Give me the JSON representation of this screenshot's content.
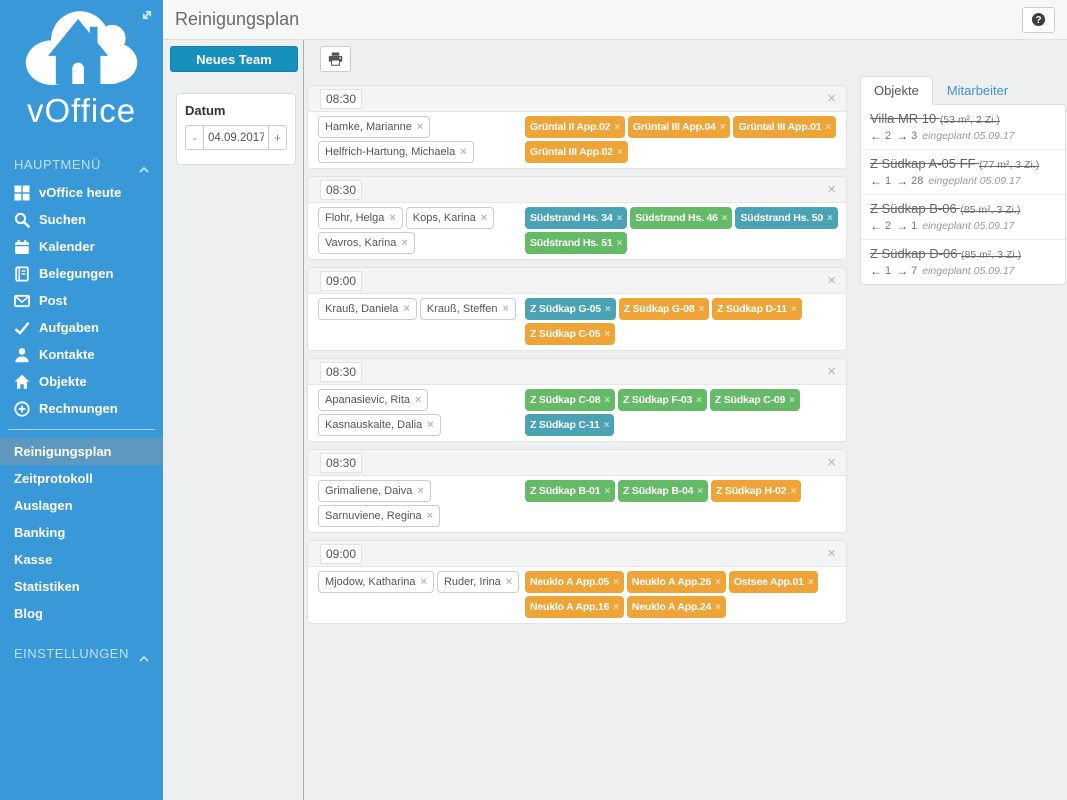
{
  "colors": {
    "orange": "#efa437",
    "teal": "#4aa2b5",
    "green": "#64ba66",
    "sidebar": "#3999d8",
    "accent": "#1790bd"
  },
  "sidebar": {
    "logo_text": "vOffice",
    "sections": [
      {
        "label": "HAUPTMENÜ",
        "collapse_icon": "chevron-up-icon",
        "items": [
          {
            "label": "vOffice heute",
            "icon": "grid-icon"
          },
          {
            "label": "Suchen",
            "icon": "search-icon"
          },
          {
            "label": "Kalender",
            "icon": "calendar-icon"
          },
          {
            "label": "Belegungen",
            "icon": "journal-icon"
          },
          {
            "label": "Post",
            "icon": "envelope-icon"
          },
          {
            "label": "Aufgaben",
            "icon": "check-icon"
          },
          {
            "label": "Kontakte",
            "icon": "person-icon"
          },
          {
            "label": "Objekte",
            "icon": "home-icon"
          },
          {
            "label": "Rechnungen",
            "icon": "plus-circle-icon"
          }
        ]
      },
      {
        "divider": true,
        "items": [
          {
            "label": "Reinigungsplan",
            "active": true
          },
          {
            "label": "Zeitprotokoll"
          },
          {
            "label": "Auslagen"
          },
          {
            "label": "Banking"
          },
          {
            "label": "Kasse"
          },
          {
            "label": "Statistiken"
          },
          {
            "label": "Blog"
          }
        ]
      },
      {
        "label": "EINSTELLUNGEN",
        "collapse_icon": "chevron-up-icon",
        "items": []
      }
    ]
  },
  "header": {
    "title": "Reinigungsplan",
    "help_icon": "question-circle-icon"
  },
  "toolbar": {
    "new_team_label": "Neues Team",
    "print_icon": "printer-icon"
  },
  "date_panel": {
    "label": "Datum",
    "decrement_label": "-",
    "value": "04.09.2017",
    "increment_label": "+"
  },
  "teams": [
    {
      "time": "08:30",
      "members": [
        "Hamke, Marianne",
        "Helfrich-Hartung, Michaela"
      ],
      "objects": [
        {
          "label": "Grüntal II App.02",
          "color": "orange"
        },
        {
          "label": "Grüntal III App.04",
          "color": "orange"
        },
        {
          "label": "Grüntal III App.01",
          "color": "orange"
        },
        {
          "label": "Grüntal III App.02",
          "color": "orange"
        }
      ]
    },
    {
      "time": "08:30",
      "members": [
        "Flohr, Helga",
        "Kops, Karina",
        "Vavros, Karina"
      ],
      "objects": [
        {
          "label": "Südstrand Hs. 34",
          "color": "teal"
        },
        {
          "label": "Südstrand Hs. 46",
          "color": "green"
        },
        {
          "label": "Südstrand Hs. 50",
          "color": "teal"
        },
        {
          "label": "Südstrand Hs. 51",
          "color": "green"
        }
      ]
    },
    {
      "time": "09:00",
      "members": [
        "Krauß, Daniela",
        "Krauß, Steffen"
      ],
      "objects": [
        {
          "label": "Z Südkap G-05",
          "color": "teal"
        },
        {
          "label": "Z Südkap G-08",
          "color": "orange"
        },
        {
          "label": "Z Südkap D-11",
          "color": "orange"
        },
        {
          "label": "Z Südkap C-05",
          "color": "orange"
        }
      ]
    },
    {
      "time": "08:30",
      "members": [
        "Apanasievic, Rita",
        "Kasnauskaite, Dalia"
      ],
      "objects": [
        {
          "label": "Z Südkap C-08",
          "color": "green"
        },
        {
          "label": "Z Südkap F-03",
          "color": "green"
        },
        {
          "label": "Z Südkap C-09",
          "color": "green"
        },
        {
          "label": "Z Südkap C-11",
          "color": "teal"
        }
      ]
    },
    {
      "time": "08:30",
      "members": [
        "Grimaliene, Daiva",
        "Sarnuviene, Regina"
      ],
      "objects": [
        {
          "label": "Z Südkap B-01",
          "color": "green"
        },
        {
          "label": "Z Südkap B-04",
          "color": "green"
        },
        {
          "label": "Z Südkap H-02",
          "color": "orange"
        }
      ]
    },
    {
      "time": "09:00",
      "members": [
        "Mjodow, Katharina",
        "Ruder, Irina"
      ],
      "objects": [
        {
          "label": "Neuklo A App.05",
          "color": "orange"
        },
        {
          "label": "Neuklo A App.26",
          "color": "orange"
        },
        {
          "label": "Ostsee App.01",
          "color": "orange"
        },
        {
          "label": "Neuklo A App.16",
          "color": "orange"
        },
        {
          "label": "Neuklo A App.24",
          "color": "orange"
        }
      ]
    }
  ],
  "right_panel": {
    "tabs": [
      {
        "label": "Objekte",
        "active": true
      },
      {
        "label": "Mitarbeiter",
        "active": false
      }
    ],
    "objects": [
      {
        "name": "Villa MR 10",
        "details": "(53 m², 2 Zi.)",
        "back": "2",
        "forward": "3",
        "note": "eingeplant 05.09.17"
      },
      {
        "name": "Z Südkap A-05 FF",
        "details": "(77 m², 3 Zi.)",
        "back": "1",
        "forward": "28",
        "note": "eingeplant 05.09.17"
      },
      {
        "name": "Z Südkap B-06",
        "details": "(85 m², 3 Zi.)",
        "back": "2",
        "forward": "1",
        "note": "eingeplant 05.09.17"
      },
      {
        "name": "Z Südkap D-06",
        "details": "(85 m², 3 Zi.)",
        "back": "1",
        "forward": "7",
        "note": "eingeplant 05.09.17"
      }
    ]
  }
}
